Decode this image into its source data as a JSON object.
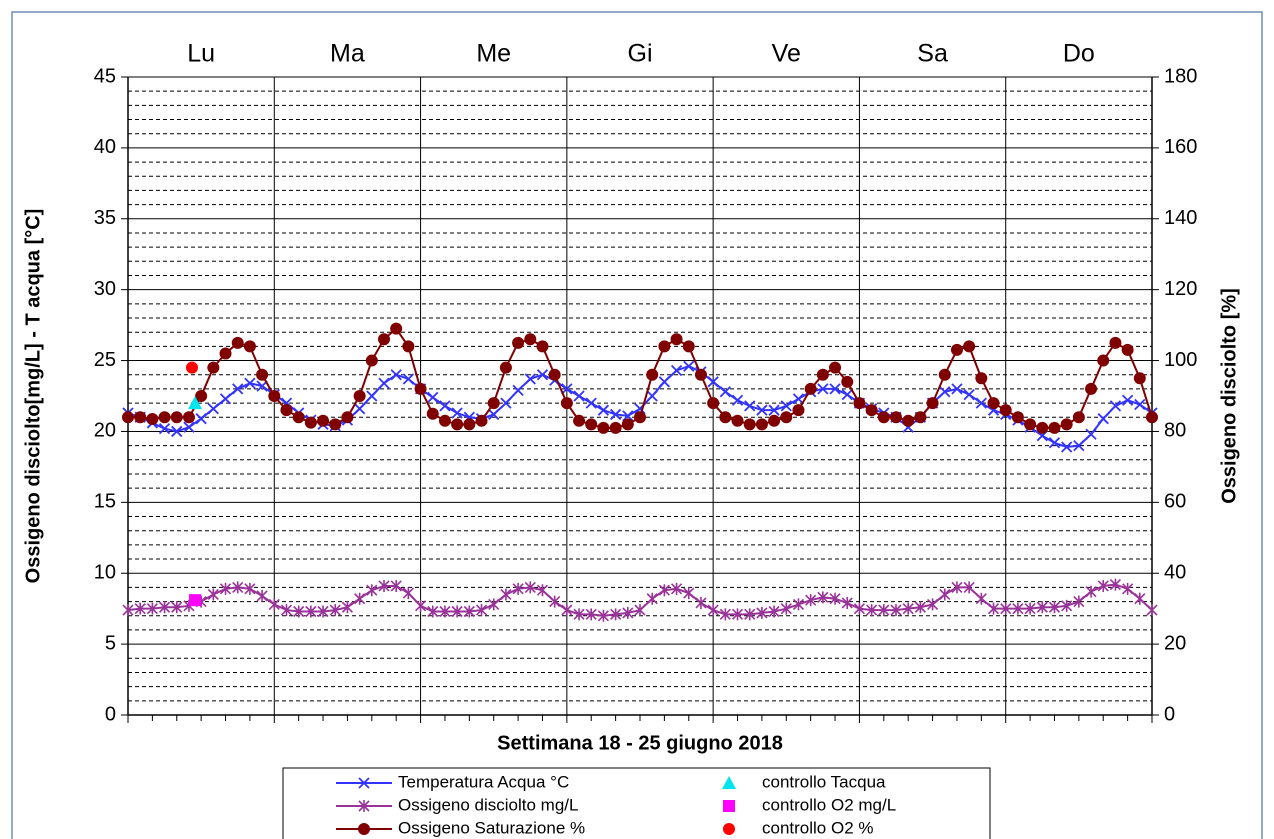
{
  "chart_data": {
    "type": "line",
    "day_labels": [
      "Lu",
      "Ma",
      "Me",
      "Gi",
      "Ve",
      "Sa",
      "Do"
    ],
    "xlabel": "Settimana 18 -  25 giugno 2018",
    "ylabel": "Ossigeno disciolto[mg/L] - T acqua [°C]",
    "y2label": "Ossigeno disciolto [%]",
    "xlim": [
      0,
      168
    ],
    "xticks": [
      0,
      24,
      48,
      72,
      96,
      120,
      144,
      168
    ],
    "xminorticks": [
      4,
      8,
      12,
      16,
      20,
      28,
      32,
      36,
      40,
      44,
      52,
      56,
      60,
      64,
      68,
      76,
      80,
      84,
      88,
      92,
      100,
      104,
      108,
      112,
      116,
      124,
      128,
      132,
      136,
      140,
      148,
      152,
      156,
      160,
      164
    ],
    "ylim": [
      0,
      45
    ],
    "yticks": [
      0,
      5,
      10,
      15,
      20,
      25,
      30,
      35,
      40,
      45
    ],
    "yminorticks": [
      1,
      2,
      3,
      4,
      6,
      7,
      8,
      9,
      11,
      12,
      13,
      14,
      16,
      17,
      18,
      19,
      21,
      22,
      23,
      24,
      26,
      27,
      28,
      29,
      31,
      32,
      33,
      34,
      36,
      37,
      38,
      39,
      41,
      42,
      43,
      44
    ],
    "y2lim": [
      0,
      180
    ],
    "y2ticks": [
      0,
      20,
      40,
      60,
      80,
      100,
      120,
      140,
      160,
      180
    ],
    "grid": true,
    "x": [
      0,
      2,
      4,
      6,
      8,
      10,
      12,
      14,
      16,
      18,
      20,
      22,
      24,
      26,
      28,
      30,
      32,
      34,
      36,
      38,
      40,
      42,
      44,
      46,
      48,
      50,
      52,
      54,
      56,
      58,
      60,
      62,
      64,
      66,
      68,
      70,
      72,
      74,
      76,
      78,
      80,
      82,
      84,
      86,
      88,
      90,
      92,
      94,
      96,
      98,
      100,
      102,
      104,
      106,
      108,
      110,
      112,
      114,
      116,
      118,
      120,
      122,
      124,
      126,
      128,
      130,
      132,
      134,
      136,
      138,
      140,
      142,
      144,
      146,
      148,
      150,
      152,
      154,
      156,
      158,
      160,
      162,
      164,
      166,
      168
    ],
    "series": [
      {
        "name": "Temperatura Acqua °C",
        "color": "#3333ff",
        "marker": "x",
        "line": true,
        "values": [
          21.3,
          21.0,
          20.6,
          20.2,
          20.0,
          20.3,
          20.9,
          21.6,
          22.3,
          23.0,
          23.4,
          23.2,
          22.6,
          22.0,
          21.3,
          20.8,
          20.5,
          20.4,
          20.8,
          21.6,
          22.5,
          23.4,
          24.0,
          23.7,
          23.0,
          22.4,
          21.8,
          21.3,
          21.0,
          20.9,
          21.2,
          22.0,
          22.9,
          23.7,
          24.0,
          23.6,
          23.0,
          22.5,
          22.0,
          21.5,
          21.2,
          21.1,
          21.6,
          22.5,
          23.5,
          24.3,
          24.6,
          24.2,
          23.5,
          22.8,
          22.2,
          21.8,
          21.5,
          21.5,
          21.8,
          22.3,
          22.8,
          23.0,
          23.0,
          22.6,
          22.0,
          21.6,
          21.3,
          21.0,
          20.3,
          21.0,
          22.0,
          22.8,
          23.0,
          22.6,
          22.0,
          21.5,
          21.2,
          20.8,
          20.3,
          19.7,
          19.2,
          18.9,
          19.0,
          19.8,
          20.9,
          21.8,
          22.2,
          21.9,
          21.3
        ]
      },
      {
        "name": "Ossigeno disciolto mg/L",
        "color": "#993399",
        "marker": "star",
        "line": true,
        "values": [
          7.4,
          7.5,
          7.5,
          7.6,
          7.6,
          7.7,
          8.0,
          8.5,
          8.9,
          9.0,
          8.9,
          8.4,
          7.8,
          7.4,
          7.3,
          7.3,
          7.3,
          7.4,
          7.6,
          8.2,
          8.8,
          9.1,
          9.1,
          8.6,
          7.7,
          7.3,
          7.3,
          7.3,
          7.3,
          7.4,
          7.8,
          8.5,
          8.9,
          9.0,
          8.8,
          8.0,
          7.4,
          7.1,
          7.1,
          7.0,
          7.1,
          7.2,
          7.4,
          8.2,
          8.8,
          8.9,
          8.6,
          7.9,
          7.4,
          7.1,
          7.1,
          7.1,
          7.2,
          7.3,
          7.5,
          7.8,
          8.1,
          8.3,
          8.2,
          7.9,
          7.5,
          7.4,
          7.4,
          7.4,
          7.5,
          7.6,
          7.8,
          8.5,
          9.0,
          9.0,
          8.2,
          7.5,
          7.5,
          7.5,
          7.5,
          7.6,
          7.6,
          7.7,
          8.0,
          8.7,
          9.1,
          9.2,
          8.9,
          8.2,
          7.4
        ]
      },
      {
        "name": "Ossigeno Saturazione %",
        "color": "#800000",
        "marker": "circle",
        "line": true,
        "axis": "y2",
        "values": [
          84,
          84,
          83.5,
          84,
          84,
          84,
          90,
          98,
          102,
          105,
          104,
          96,
          90,
          86,
          84,
          82.5,
          83,
          82,
          84,
          90,
          100,
          106,
          109,
          104,
          92,
          85,
          83,
          82,
          82,
          83,
          88,
          98,
          105,
          106,
          104,
          96,
          88,
          83,
          82,
          81,
          81,
          82,
          84,
          96,
          104,
          106,
          104,
          96,
          88,
          84,
          83,
          82,
          82,
          83,
          84,
          86,
          92,
          96,
          98,
          94,
          88,
          86,
          84,
          84,
          83,
          84,
          88,
          96,
          103,
          104,
          95,
          88,
          86,
          84,
          82,
          81,
          81,
          82,
          84,
          92,
          100,
          105,
          103,
          95,
          84
        ]
      },
      {
        "name": "controllo Tacqua",
        "color": "#00e5ee",
        "marker": "triangle",
        "line": false,
        "x": [
          11
        ],
        "values": [
          22
        ]
      },
      {
        "name": "controllo O2 mg/L",
        "color": "#ff00ff",
        "marker": "square",
        "line": false,
        "x": [
          11
        ],
        "values": [
          8.1
        ]
      },
      {
        "name": "controllo O2 %",
        "color": "#ff0000",
        "marker": "circle",
        "line": false,
        "axis": "y2",
        "x": [
          10.5
        ],
        "values": [
          98
        ]
      }
    ]
  }
}
